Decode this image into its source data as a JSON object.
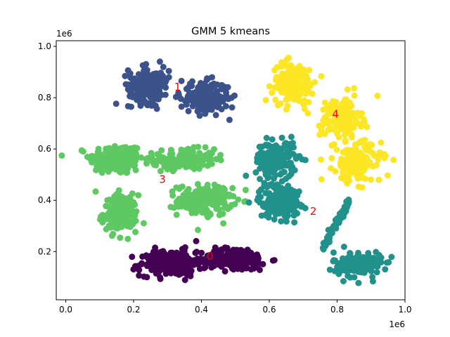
{
  "chart_data": {
    "type": "scatter",
    "title": "GMM 5 kmeans",
    "xlabel": "",
    "ylabel": "",
    "x_offset_label": "1e6",
    "y_offset_label": "1e6",
    "xlim": [
      -0.028,
      1.0
    ],
    "ylim": [
      0.012,
      1.022
    ],
    "x_ticks": [
      0.0,
      0.2,
      0.4,
      0.6,
      0.8,
      1.0
    ],
    "x_tick_labels": [
      "0.0",
      "0.2",
      "0.4",
      "0.6",
      "0.8",
      "1.0"
    ],
    "y_ticks": [
      0.2,
      0.4,
      0.6,
      0.8,
      1.0
    ],
    "y_tick_labels": [
      "0.2",
      "0.4",
      "0.6",
      "0.8",
      "1.0"
    ],
    "grid": false,
    "marker_color_scheme": "viridis",
    "clusters": [
      {
        "label": "0",
        "color": "#440154",
        "label_pos": [
          0.425,
          0.18
        ],
        "blobs": [
          {
            "cx": 0.31,
            "cy": 0.155,
            "sx": 0.045,
            "sy": 0.025,
            "n": 220
          },
          {
            "cx": 0.5,
            "cy": 0.17,
            "sx": 0.05,
            "sy": 0.022,
            "n": 200
          }
        ]
      },
      {
        "label": "1",
        "color": "#3b528b",
        "label_pos": [
          0.33,
          0.84
        ],
        "blobs": [
          {
            "cx": 0.245,
            "cy": 0.85,
            "sx": 0.03,
            "sy": 0.035,
            "n": 190
          },
          {
            "cx": 0.41,
            "cy": 0.8,
            "sx": 0.035,
            "sy": 0.03,
            "n": 190
          }
        ]
      },
      {
        "label": "2",
        "color": "#21918c",
        "label_pos": [
          0.73,
          0.355
        ],
        "blobs": [
          {
            "cx": 0.62,
            "cy": 0.56,
            "sx": 0.03,
            "sy": 0.035,
            "n": 170
          },
          {
            "cx": 0.63,
            "cy": 0.4,
            "sx": 0.03,
            "sy": 0.035,
            "n": 170
          },
          {
            "cx": 0.86,
            "cy": 0.15,
            "sx": 0.035,
            "sy": 0.025,
            "n": 160
          }
        ]
      },
      {
        "label": "3",
        "color": "#5ec962",
        "label_pos": [
          0.285,
          0.48
        ],
        "blobs": [
          {
            "cx": 0.15,
            "cy": 0.56,
            "sx": 0.04,
            "sy": 0.03,
            "n": 190
          },
          {
            "cx": 0.35,
            "cy": 0.56,
            "sx": 0.045,
            "sy": 0.02,
            "n": 160
          },
          {
            "cx": 0.16,
            "cy": 0.35,
            "sx": 0.025,
            "sy": 0.035,
            "n": 170
          },
          {
            "cx": 0.41,
            "cy": 0.4,
            "sx": 0.04,
            "sy": 0.03,
            "n": 180
          }
        ]
      },
      {
        "label": "4",
        "color": "#fde725",
        "label_pos": [
          0.795,
          0.735
        ],
        "blobs": [
          {
            "cx": 0.67,
            "cy": 0.86,
            "sx": 0.03,
            "sy": 0.04,
            "n": 160
          },
          {
            "cx": 0.81,
            "cy": 0.72,
            "sx": 0.03,
            "sy": 0.04,
            "n": 150
          },
          {
            "cx": 0.86,
            "cy": 0.55,
            "sx": 0.035,
            "sy": 0.04,
            "n": 160
          }
        ]
      }
    ],
    "line_segment": {
      "cluster": "2",
      "from": [
        0.755,
        0.21
      ],
      "to": [
        0.835,
        0.4
      ],
      "n": 60
    },
    "label_color": "#ff0000"
  }
}
